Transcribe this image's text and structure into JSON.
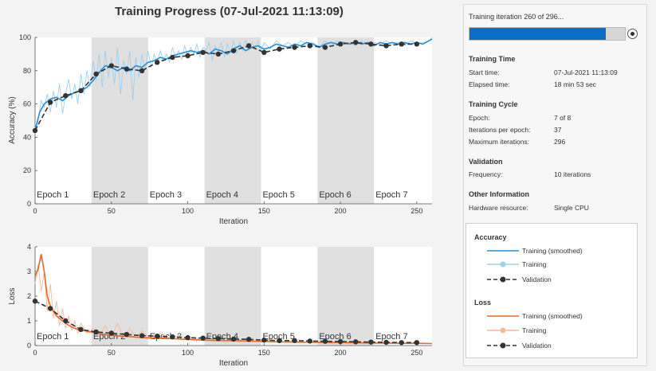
{
  "title": "Training Progress (07-Jul-2021 11:13:09)",
  "colors": {
    "train_smoothed_acc": "#2b8fd6",
    "train_raw_acc": "#9fd0f2",
    "validation": "#333333",
    "train_smoothed_loss": "#e8692a",
    "train_raw_loss": "#f7b999",
    "progress_fill": "#0a6fc4",
    "epoch_shade": "#e0e0e0"
  },
  "side": {
    "progress_text": "Training iteration 260 of 296...",
    "progress_fraction": 0.878,
    "training_time": {
      "title": "Training Time",
      "start_label": "Start time:",
      "start_value": "07-Jul-2021 11:13:09",
      "elapsed_label": "Elapsed time:",
      "elapsed_value": "18 min 53 sec"
    },
    "training_cycle": {
      "title": "Training Cycle",
      "epoch_label": "Epoch:",
      "epoch_value": "7 of 8",
      "ipe_label": "Iterations per epoch:",
      "ipe_value": "37",
      "max_label": "Maximum iterations:",
      "max_value": "296"
    },
    "validation": {
      "title": "Validation",
      "freq_label": "Frequency:",
      "freq_value": "10 iterations"
    },
    "other": {
      "title": "Other Information",
      "hw_label": "Hardware resource:",
      "hw_value": "Single CPU"
    }
  },
  "legend": {
    "accuracy_title": "Accuracy",
    "loss_title": "Loss",
    "smoothed": "Training (smoothed)",
    "training": "Training",
    "validation": "Validation"
  },
  "chart_data": [
    {
      "type": "line",
      "title": "",
      "xlabel": "Iteration",
      "ylabel": "Accuracy (%)",
      "xlim": [
        0,
        260
      ],
      "ylim": [
        0,
        100
      ],
      "xticks": [
        0,
        50,
        100,
        150,
        200,
        250
      ],
      "yticks": [
        0,
        20,
        40,
        60,
        80,
        100
      ],
      "epochs": [
        "Epoch 1",
        "Epoch 2",
        "Epoch 3",
        "Epoch 4",
        "Epoch 5",
        "Epoch 6",
        "Epoch 7"
      ],
      "epoch_length": 37,
      "series": [
        {
          "name": "Training (smoothed)",
          "x": [
            0,
            3,
            6,
            10,
            14,
            18,
            22,
            26,
            30,
            34,
            38,
            42,
            46,
            50,
            54,
            58,
            62,
            66,
            70,
            74,
            78,
            82,
            86,
            90,
            94,
            98,
            102,
            106,
            110,
            114,
            118,
            122,
            126,
            130,
            134,
            138,
            142,
            146,
            150,
            154,
            158,
            162,
            166,
            170,
            174,
            178,
            182,
            186,
            190,
            194,
            198,
            202,
            206,
            210,
            214,
            218,
            222,
            226,
            230,
            234,
            238,
            242,
            246,
            250,
            254,
            258,
            260
          ],
          "y": [
            44,
            55,
            60,
            63,
            64,
            62,
            65,
            67,
            68,
            70,
            74,
            79,
            83,
            82,
            80,
            82,
            80,
            83,
            82,
            85,
            86,
            88,
            87,
            89,
            90,
            91,
            92,
            91,
            92,
            90,
            93,
            92,
            90,
            93,
            95,
            92,
            94,
            95,
            93,
            94,
            96,
            95,
            94,
            96,
            95,
            97,
            96,
            94,
            96,
            97,
            96,
            97,
            96,
            97,
            96,
            97,
            95,
            97,
            96,
            97,
            96,
            97,
            96,
            97,
            96,
            98,
            99
          ]
        },
        {
          "name": "Training",
          "x": [
            0,
            2,
            4,
            6,
            8,
            10,
            12,
            14,
            16,
            18,
            20,
            22,
            24,
            26,
            28,
            30,
            32,
            34,
            36,
            38,
            40,
            42,
            44,
            46,
            48,
            50,
            52,
            54,
            56,
            58,
            60,
            62,
            64,
            66,
            68,
            70,
            72,
            74,
            76,
            78,
            80,
            82,
            84,
            86,
            88,
            90,
            92,
            94,
            96,
            98,
            100,
            102,
            104,
            106,
            108,
            110,
            112,
            114,
            116,
            118,
            120,
            122,
            124,
            126,
            128,
            130,
            132,
            134,
            136,
            138,
            140,
            142,
            144,
            146,
            148,
            150,
            154,
            158,
            162,
            166,
            170,
            174,
            178,
            182,
            186,
            190,
            194,
            198,
            202,
            206,
            210,
            214,
            218,
            222,
            226,
            230,
            234,
            238,
            242,
            246,
            250,
            254,
            258,
            260
          ],
          "y": [
            42,
            50,
            62,
            58,
            66,
            55,
            68,
            58,
            72,
            54,
            66,
            75,
            63,
            72,
            60,
            78,
            66,
            80,
            70,
            86,
            74,
            90,
            70,
            92,
            76,
            88,
            72,
            94,
            66,
            86,
            78,
            92,
            62,
            88,
            76,
            90,
            80,
            92,
            82,
            90,
            84,
            92,
            86,
            90,
            85,
            94,
            88,
            92,
            87,
            95,
            89,
            94,
            90,
            96,
            88,
            94,
            92,
            97,
            86,
            95,
            91,
            97,
            88,
            96,
            91,
            98,
            90,
            97,
            92,
            98,
            93,
            97,
            94,
            98,
            92,
            97,
            93,
            98,
            95,
            97,
            94,
            98,
            96,
            97,
            94,
            98,
            95,
            98,
            96,
            97,
            95,
            98,
            96,
            97,
            96,
            98,
            96,
            97,
            95,
            98,
            96,
            97,
            98,
            100
          ]
        },
        {
          "name": "Validation",
          "x": [
            0,
            10,
            20,
            30,
            40,
            50,
            60,
            70,
            80,
            90,
            100,
            110,
            120,
            130,
            140,
            150,
            160,
            170,
            180,
            190,
            200,
            210,
            220,
            230,
            240,
            250
          ],
          "y": [
            44,
            61,
            65,
            68,
            78,
            83,
            81,
            80,
            85,
            88,
            89,
            91,
            90,
            92,
            95,
            91,
            93,
            94,
            95,
            94,
            96,
            97,
            96,
            95,
            96,
            96
          ]
        }
      ]
    },
    {
      "type": "line",
      "title": "",
      "xlabel": "Iteration",
      "ylabel": "Loss",
      "xlim": [
        0,
        260
      ],
      "ylim": [
        0,
        4
      ],
      "xticks": [
        0,
        50,
        100,
        150,
        200,
        250
      ],
      "yticks": [
        0,
        1,
        2,
        3,
        4
      ],
      "epochs": [
        "Epoch 1",
        "Epoch 2",
        "Epoch 3",
        "Epoch 4",
        "Epoch 5",
        "Epoch 6",
        "Epoch 7"
      ],
      "epoch_length": 37,
      "series": [
        {
          "name": "Training (smoothed)",
          "x": [
            0,
            2,
            4,
            6,
            8,
            10,
            12,
            14,
            16,
            18,
            20,
            24,
            28,
            32,
            36,
            40,
            46,
            52,
            58,
            64,
            70,
            80,
            90,
            100,
            110,
            120,
            130,
            140,
            150,
            160,
            170,
            180,
            190,
            200,
            210,
            220,
            230,
            240,
            250,
            260
          ],
          "y": [
            2.8,
            3.1,
            3.7,
            3.0,
            2.0,
            1.6,
            1.4,
            1.2,
            1.1,
            1.0,
            0.9,
            0.75,
            0.65,
            0.6,
            0.55,
            0.5,
            0.45,
            0.4,
            0.38,
            0.35,
            0.32,
            0.3,
            0.28,
            0.25,
            0.22,
            0.2,
            0.2,
            0.18,
            0.16,
            0.15,
            0.14,
            0.13,
            0.12,
            0.12,
            0.11,
            0.1,
            0.1,
            0.09,
            0.09,
            0.08
          ]
        },
        {
          "name": "Training",
          "x": [
            0,
            2,
            4,
            6,
            8,
            10,
            12,
            14,
            16,
            18,
            20,
            22,
            24,
            26,
            28,
            30,
            34,
            38,
            42,
            46,
            50,
            54,
            58,
            62,
            66,
            70,
            76,
            82,
            88,
            94,
            100,
            110,
            120,
            130,
            140,
            150,
            160,
            170,
            180,
            190,
            200,
            210,
            220,
            230,
            240,
            250,
            260
          ],
          "y": [
            2.5,
            3.3,
            2.2,
            3.0,
            1.4,
            2.5,
            1.1,
            1.8,
            0.8,
            1.5,
            0.7,
            1.2,
            0.6,
            1.0,
            0.5,
            0.9,
            0.5,
            0.7,
            0.4,
            0.8,
            0.35,
            0.9,
            0.3,
            0.7,
            0.3,
            0.6,
            0.25,
            0.5,
            0.3,
            0.4,
            0.25,
            0.3,
            0.2,
            0.25,
            0.18,
            0.2,
            0.15,
            0.18,
            0.12,
            0.15,
            0.1,
            0.14,
            0.1,
            0.12,
            0.09,
            0.1,
            0.08
          ]
        },
        {
          "name": "Validation",
          "x": [
            0,
            10,
            20,
            30,
            40,
            50,
            60,
            70,
            80,
            90,
            100,
            110,
            120,
            130,
            140,
            150,
            160,
            170,
            180,
            190,
            200,
            210,
            220,
            230,
            240,
            250
          ],
          "y": [
            1.8,
            1.5,
            1.0,
            0.65,
            0.55,
            0.5,
            0.45,
            0.4,
            0.38,
            0.35,
            0.32,
            0.3,
            0.28,
            0.26,
            0.25,
            0.22,
            0.2,
            0.2,
            0.18,
            0.17,
            0.16,
            0.15,
            0.14,
            0.13,
            0.12,
            0.12
          ]
        }
      ]
    }
  ]
}
